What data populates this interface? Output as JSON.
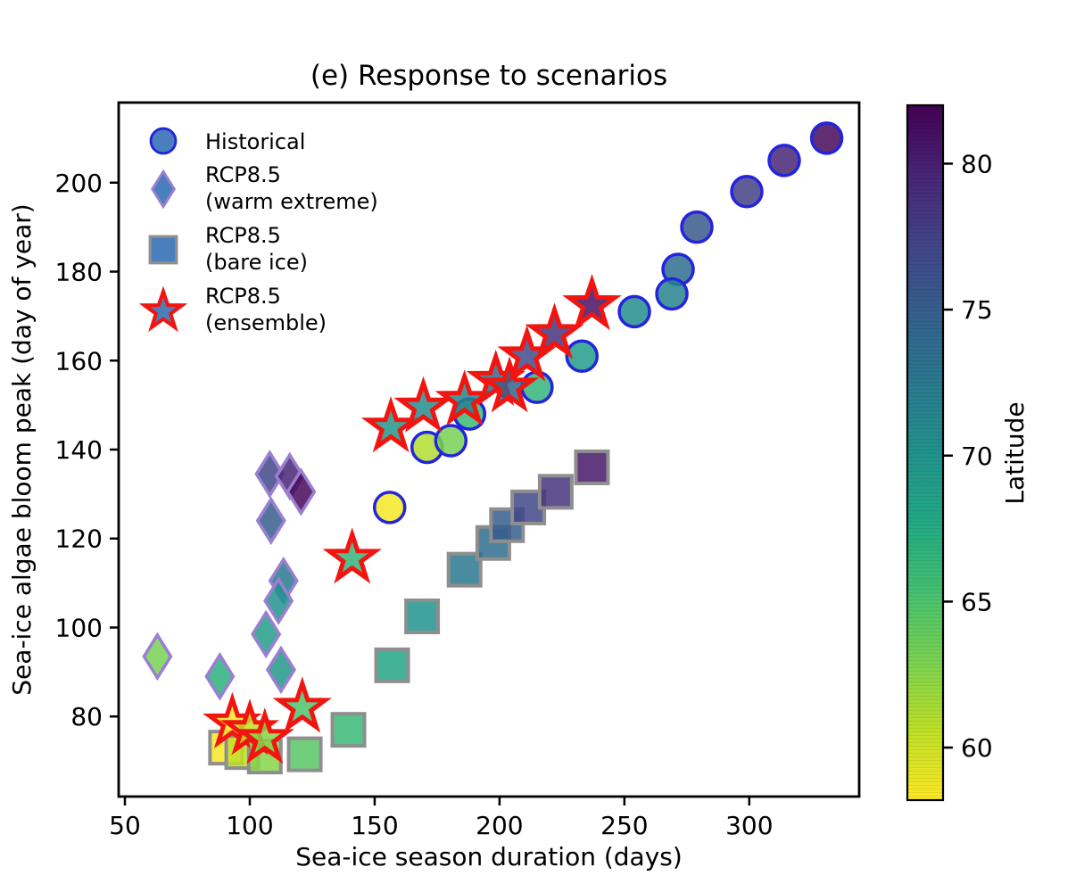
{
  "chart_data": {
    "type": "scatter",
    "title": "(e) Response to scenarios",
    "xlabel": "Sea-ice season duration (days)",
    "ylabel": "Sea-ice algae bloom peak (day of year)",
    "xlim": [
      47.5,
      344
    ],
    "ylim": [
      62,
      218
    ],
    "xticks": [
      50,
      100,
      150,
      200,
      250,
      300
    ],
    "yticks": [
      80,
      100,
      120,
      140,
      160,
      180,
      200
    ],
    "grid": false,
    "marker_fill_opacity": 0.85,
    "colorbar": {
      "label": "Latitude",
      "min": 58.2,
      "max": 82,
      "ticks": [
        60,
        65,
        70,
        75,
        80
      ],
      "colormap": "viridis",
      "viridis_stops": [
        "#440154",
        "#482475",
        "#414487",
        "#355f8d",
        "#2a788e",
        "#21918c",
        "#22a884",
        "#44bf70",
        "#7ad151",
        "#bddf26",
        "#fde725"
      ]
    },
    "series": [
      {
        "name": "RCP8.5 (bare ice)",
        "marker": "square",
        "edge_color": "#8e8e8e",
        "points_format": "[season_duration_days, bloom_peak_doy, latitude]",
        "points": [
          [
            90.5,
            73,
            58.5
          ],
          [
            97,
            72,
            60.5
          ],
          [
            106,
            71,
            62.5
          ],
          [
            122,
            71.5,
            64.5
          ],
          [
            139.5,
            77,
            66
          ],
          [
            157,
            91.5,
            68
          ],
          [
            169,
            102.5,
            70
          ],
          [
            186,
            113,
            72.5
          ],
          [
            197.5,
            119,
            73.5
          ],
          [
            203,
            123,
            75
          ],
          [
            211.5,
            127,
            77
          ],
          [
            222.5,
            130.5,
            78.5
          ],
          [
            237,
            136,
            80.5
          ]
        ]
      },
      {
        "name": "RCP8.5 (warm extreme)",
        "marker": "diamond",
        "edge_color": "#9a7fd1",
        "points_format": "[season_duration_days, bloom_peak_doy, latitude]",
        "points": [
          [
            63,
            93.5,
            63
          ],
          [
            88,
            89,
            67
          ],
          [
            106.5,
            98.5,
            69
          ],
          [
            112.5,
            90.5,
            69.5
          ],
          [
            113.5,
            110.5,
            72.5
          ],
          [
            111.5,
            106,
            70
          ],
          [
            108.5,
            124,
            75
          ],
          [
            108,
            134.5,
            77
          ],
          [
            116,
            134,
            79.5
          ],
          [
            120.5,
            130.5,
            81.5
          ]
        ]
      },
      {
        "name": "Historical",
        "marker": "circle",
        "edge_color": "#2424dd",
        "points_format": "[season_duration_days, bloom_peak_doy, latitude]",
        "points": [
          [
            156,
            127,
            58.5
          ],
          [
            171,
            140.5,
            61
          ],
          [
            180.5,
            142,
            63
          ],
          [
            188,
            148,
            66
          ],
          [
            215,
            154,
            66.5
          ],
          [
            233,
            161,
            69
          ],
          [
            254,
            171,
            70.5
          ],
          [
            271.5,
            180.5,
            73.5
          ],
          [
            269,
            175,
            71.5
          ],
          [
            279,
            190,
            75.5
          ],
          [
            299,
            198,
            77.5
          ],
          [
            314,
            205,
            79.5
          ],
          [
            331,
            210,
            81.5
          ]
        ]
      },
      {
        "name": "RCP8.5 (ensemble)",
        "marker": "star",
        "edge_color": "#f2150f",
        "points_format": "[season_duration_days, bloom_peak_doy, latitude]",
        "points": [
          [
            93,
            78.5,
            58.5
          ],
          [
            100,
            77,
            60.5
          ],
          [
            106,
            75,
            62.5
          ],
          [
            121,
            82,
            65
          ],
          [
            141,
            115.5,
            66.5
          ],
          [
            156.5,
            145,
            69.5
          ],
          [
            169.5,
            149.5,
            70.5
          ],
          [
            186,
            151,
            71.5
          ],
          [
            198.5,
            155.5,
            74
          ],
          [
            204,
            154,
            74.5
          ],
          [
            211,
            161,
            76.5
          ],
          [
            222,
            166,
            78.5
          ],
          [
            237,
            172.5,
            81
          ]
        ]
      }
    ],
    "legend": {
      "position": "upper left",
      "frame": false,
      "marker_fill": "#4a7fbe",
      "items": [
        {
          "marker": "circle",
          "edge_color": "#2424dd",
          "line1": "Historical",
          "line2": ""
        },
        {
          "marker": "diamond",
          "edge_color": "#9a7fd1",
          "line1": "RCP8.5",
          "line2": "(warm extreme)"
        },
        {
          "marker": "square",
          "edge_color": "#8e8e8e",
          "line1": "RCP8.5",
          "line2": "(bare ice)"
        },
        {
          "marker": "star",
          "edge_color": "#f2150f",
          "line1": "RCP8.5",
          "line2": "(ensemble)"
        }
      ]
    }
  }
}
